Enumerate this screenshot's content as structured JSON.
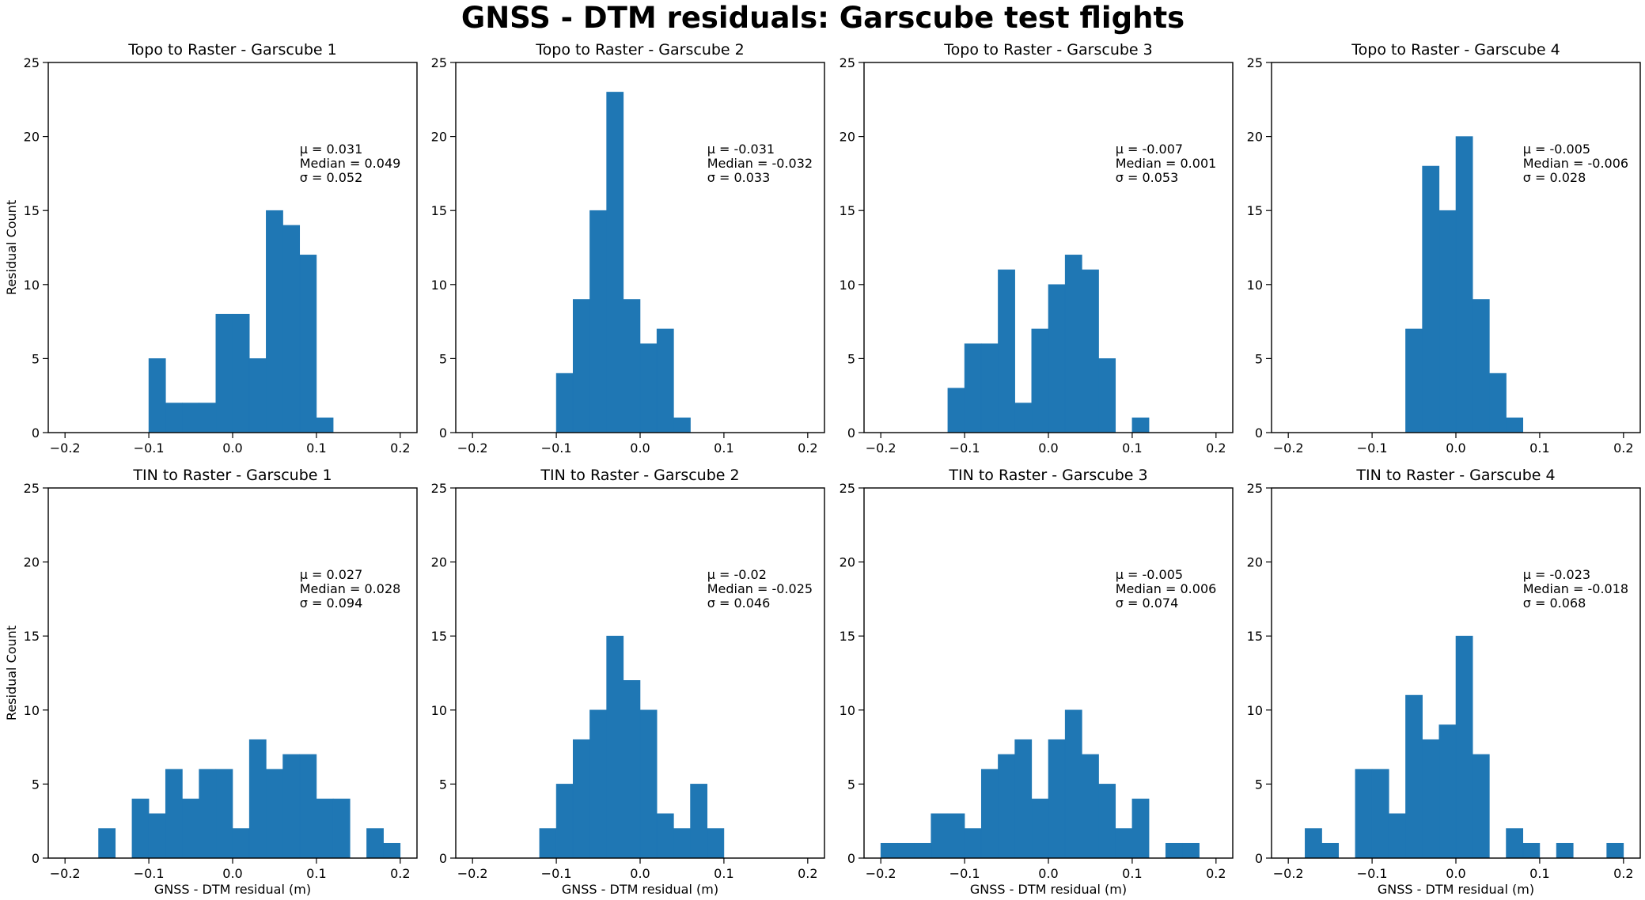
{
  "figure": {
    "title": "GNSS - DTM residuals: Garscube test flights"
  },
  "chart_data": [
    {
      "type": "bar",
      "title": "Topo to Raster - Garscube 1",
      "xlabel": "",
      "ylabel": "Residual Count",
      "xlim": [
        -0.22,
        0.22
      ],
      "ylim": [
        0,
        25
      ],
      "xticks": [
        "-0.2",
        "-0.1",
        "0.0",
        "0.1",
        "0.2"
      ],
      "yticks": [
        "0",
        "5",
        "10",
        "15",
        "20",
        "25"
      ],
      "bin_edges": [
        -0.1,
        -0.08,
        -0.06,
        -0.04,
        -0.02,
        0.0,
        0.02,
        0.04,
        0.06,
        0.08,
        0.1,
        0.12
      ],
      "counts": [
        5,
        2,
        2,
        2,
        8,
        8,
        5,
        15,
        14,
        12,
        1
      ],
      "stats": [
        "μ = 0.031",
        "Median = 0.049",
        "σ = 0.052"
      ],
      "color": "#1f77b4"
    },
    {
      "type": "bar",
      "title": "Topo to Raster - Garscube 2",
      "xlabel": "",
      "ylabel": "",
      "xlim": [
        -0.22,
        0.22
      ],
      "ylim": [
        0,
        25
      ],
      "xticks": [
        "-0.2",
        "-0.1",
        "0.0",
        "0.1",
        "0.2"
      ],
      "yticks": [
        "0",
        "5",
        "10",
        "15",
        "20",
        "25"
      ],
      "bin_edges": [
        -0.1,
        -0.08,
        -0.06,
        -0.04,
        -0.02,
        0.0,
        0.02,
        0.04,
        0.06
      ],
      "counts": [
        4,
        9,
        15,
        23,
        9,
        6,
        7,
        1
      ],
      "stats": [
        "μ = -0.031",
        "Median = -0.032",
        "σ = 0.033"
      ],
      "color": "#1f77b4"
    },
    {
      "type": "bar",
      "title": "Topo to Raster - Garscube 3",
      "xlabel": "",
      "ylabel": "",
      "xlim": [
        -0.22,
        0.22
      ],
      "ylim": [
        0,
        25
      ],
      "xticks": [
        "-0.2",
        "-0.1",
        "0.0",
        "0.1",
        "0.2"
      ],
      "yticks": [
        "0",
        "5",
        "10",
        "15",
        "20",
        "25"
      ],
      "bin_edges": [
        -0.12,
        -0.1,
        -0.08,
        -0.06,
        -0.04,
        -0.02,
        0.0,
        0.02,
        0.04,
        0.06,
        0.08,
        0.1,
        0.12
      ],
      "counts": [
        3,
        6,
        6,
        11,
        2,
        7,
        10,
        12,
        11,
        5,
        0,
        1
      ],
      "stats": [
        "μ = -0.007",
        "Median = 0.001",
        "σ = 0.053"
      ],
      "color": "#1f77b4"
    },
    {
      "type": "bar",
      "title": "Topo to Raster - Garscube 4",
      "xlabel": "",
      "ylabel": "",
      "xlim": [
        -0.22,
        0.22
      ],
      "ylim": [
        0,
        25
      ],
      "xticks": [
        "-0.2",
        "-0.1",
        "0.0",
        "0.1",
        "0.2"
      ],
      "yticks": [
        "0",
        "5",
        "10",
        "15",
        "20",
        "25"
      ],
      "bin_edges": [
        -0.06,
        -0.04,
        -0.02,
        0.0,
        0.02,
        0.04,
        0.06,
        0.08
      ],
      "counts": [
        7,
        18,
        15,
        20,
        9,
        4,
        1
      ],
      "stats": [
        "μ = -0.005",
        "Median = -0.006",
        "σ = 0.028"
      ],
      "color": "#1f77b4"
    },
    {
      "type": "bar",
      "title": "TIN to Raster - Garscube 1",
      "xlabel": "GNSS - DTM residual (m)",
      "ylabel": "Residual Count",
      "xlim": [
        -0.22,
        0.22
      ],
      "ylim": [
        0,
        25
      ],
      "xticks": [
        "-0.2",
        "-0.1",
        "0.0",
        "0.1",
        "0.2"
      ],
      "yticks": [
        "0",
        "5",
        "10",
        "15",
        "20",
        "25"
      ],
      "bin_edges": [
        -0.16,
        -0.14,
        -0.12,
        -0.1,
        -0.08,
        -0.06,
        -0.04,
        -0.02,
        0.0,
        0.02,
        0.04,
        0.06,
        0.08,
        0.1,
        0.12,
        0.14,
        0.16,
        0.18,
        0.2
      ],
      "counts": [
        2,
        0,
        4,
        3,
        6,
        4,
        6,
        6,
        2,
        8,
        6,
        7,
        7,
        4,
        4,
        0,
        2,
        1
      ],
      "stats": [
        "μ = 0.027",
        "Median = 0.028",
        "σ = 0.094"
      ],
      "color": "#1f77b4"
    },
    {
      "type": "bar",
      "title": "TIN to Raster - Garscube 2",
      "xlabel": "GNSS - DTM residual (m)",
      "ylabel": "",
      "xlim": [
        -0.22,
        0.22
      ],
      "ylim": [
        0,
        25
      ],
      "xticks": [
        "-0.2",
        "-0.1",
        "0.0",
        "0.1",
        "0.2"
      ],
      "yticks": [
        "0",
        "5",
        "10",
        "15",
        "20",
        "25"
      ],
      "bin_edges": [
        -0.12,
        -0.1,
        -0.08,
        -0.06,
        -0.04,
        -0.02,
        0.0,
        0.02,
        0.04,
        0.06,
        0.08,
        0.1
      ],
      "counts": [
        2,
        5,
        8,
        10,
        15,
        12,
        10,
        3,
        2,
        5,
        2
      ],
      "stats": [
        "μ = -0.02",
        "Median = -0.025",
        "σ = 0.046"
      ],
      "color": "#1f77b4"
    },
    {
      "type": "bar",
      "title": "TIN to Raster - Garscube 3",
      "xlabel": "GNSS - DTM residual (m)",
      "ylabel": "",
      "xlim": [
        -0.22,
        0.22
      ],
      "ylim": [
        0,
        25
      ],
      "xticks": [
        "-0.2",
        "-0.1",
        "0.0",
        "0.1",
        "0.2"
      ],
      "yticks": [
        "0",
        "5",
        "10",
        "15",
        "20",
        "25"
      ],
      "bin_edges": [
        -0.2,
        -0.18,
        -0.16,
        -0.14,
        -0.12,
        -0.1,
        -0.08,
        -0.06,
        -0.04,
        -0.02,
        0.0,
        0.02,
        0.04,
        0.06,
        0.08,
        0.1,
        0.12,
        0.14,
        0.16,
        0.18
      ],
      "counts": [
        1,
        1,
        1,
        3,
        3,
        2,
        6,
        7,
        8,
        4,
        8,
        10,
        7,
        5,
        2,
        4,
        0,
        1,
        1
      ],
      "stats": [
        "μ = -0.005",
        "Median = 0.006",
        "σ = 0.074"
      ],
      "color": "#1f77b4"
    },
    {
      "type": "bar",
      "title": "TIN to Raster - Garscube 4",
      "xlabel": "GNSS - DTM residual (m)",
      "ylabel": "",
      "xlim": [
        -0.22,
        0.22
      ],
      "ylim": [
        0,
        25
      ],
      "xticks": [
        "-0.2",
        "-0.1",
        "0.0",
        "0.1",
        "0.2"
      ],
      "yticks": [
        "0",
        "5",
        "10",
        "15",
        "20",
        "25"
      ],
      "bin_edges": [
        -0.18,
        -0.16,
        -0.14,
        -0.12,
        -0.1,
        -0.08,
        -0.06,
        -0.04,
        -0.02,
        0.0,
        0.02,
        0.04,
        0.06,
        0.08,
        0.1,
        0.12,
        0.14,
        0.16,
        0.18,
        0.2
      ],
      "counts": [
        2,
        1,
        0,
        6,
        6,
        3,
        11,
        8,
        9,
        15,
        7,
        0,
        2,
        1,
        0,
        1,
        0,
        0,
        1
      ],
      "stats": [
        "μ = -0.023",
        "Median = -0.018",
        "σ = 0.068"
      ],
      "color": "#1f77b4"
    }
  ]
}
